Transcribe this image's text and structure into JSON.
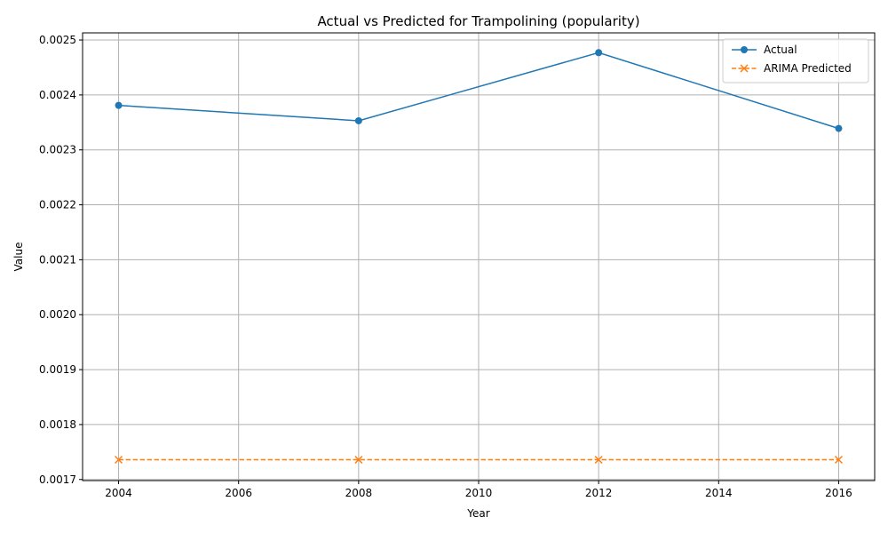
{
  "chart_data": {
    "type": "line",
    "title": "Actual vs Predicted for Trampolining (popularity)",
    "xlabel": "Year",
    "ylabel": "Value",
    "x": [
      2004,
      2008,
      2012,
      2016
    ],
    "xlim": [
      2003.4,
      2016.6
    ],
    "ylim": [
      0.001698,
      0.002513
    ],
    "xticks": [
      "2004",
      "2006",
      "2008",
      "2010",
      "2012",
      "2014",
      "2016"
    ],
    "yticks": [
      "0.0017",
      "0.0018",
      "0.0019",
      "0.0020",
      "0.0021",
      "0.0022",
      "0.0023",
      "0.0024",
      "0.0025"
    ],
    "grid": true,
    "legend_position": "top-right",
    "series": [
      {
        "name": "Actual",
        "values": [
          0.002381,
          0.002353,
          0.002477,
          0.002339
        ],
        "color": "#1f77b4",
        "marker": "circle",
        "linestyle": "solid"
      },
      {
        "name": "ARIMA Predicted",
        "values": [
          0.001736,
          0.001736,
          0.001736,
          0.001736
        ],
        "color": "#ff7f0e",
        "marker": "x",
        "linestyle": "dashed"
      }
    ]
  }
}
